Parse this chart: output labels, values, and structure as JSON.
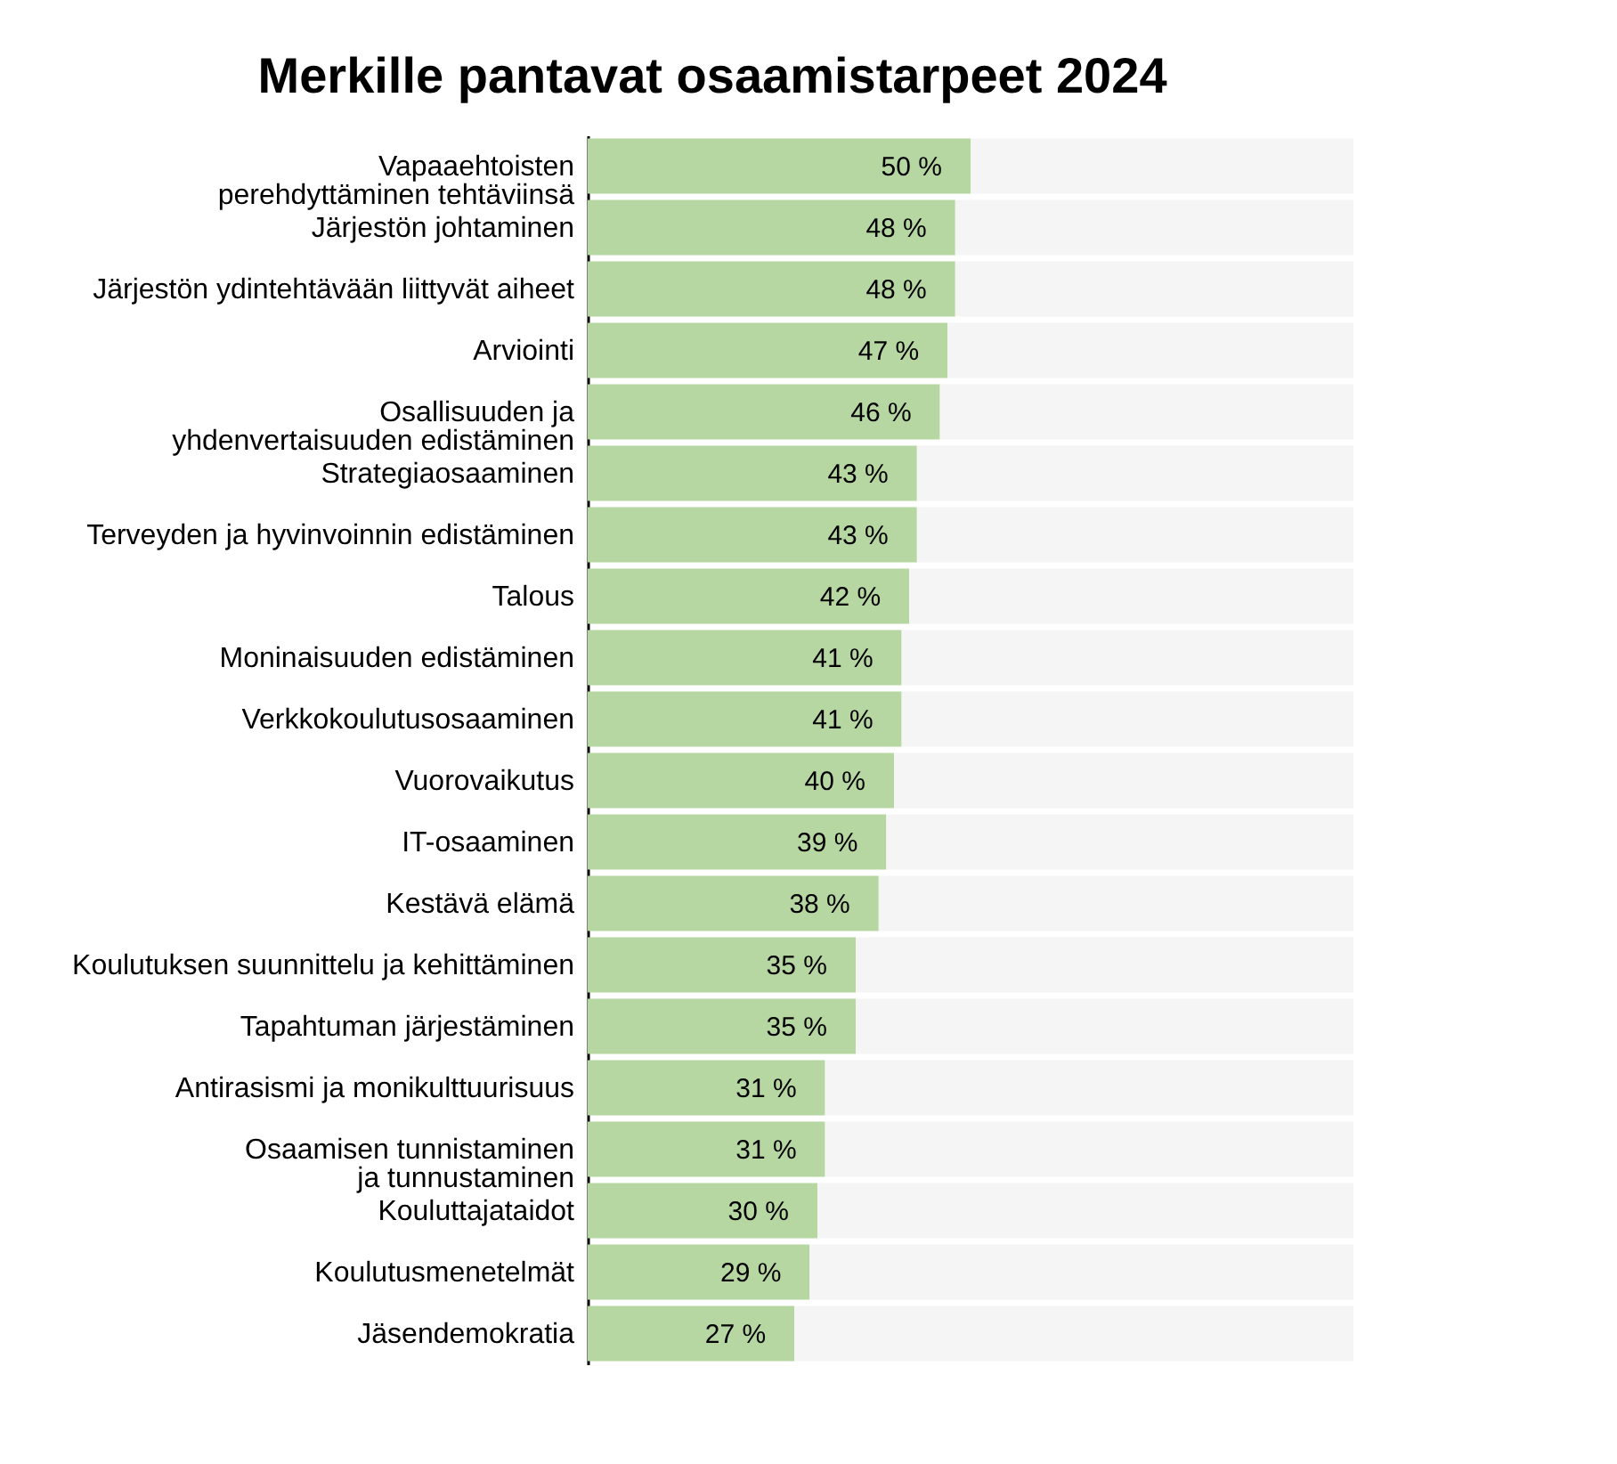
{
  "chart_data": {
    "type": "bar",
    "title": "Merkille pantavat osaamistarpeet 2024",
    "orientation": "horizontal",
    "stacked": true,
    "tick_labels": "y",
    "categories": [
      "Vapaaehtoisten\nperehdyttäminen tehtäviinsä",
      "Järjestön johtaminen",
      "Järjestön ydintehtävään liittyvät aiheet",
      "Arviointi",
      "Osallisuuden ja\nyhdenvertaisuuden edistäminen",
      "Strategiaosaaminen",
      "Terveyden ja hyvinvoinnin edistäminen",
      "Talous",
      "Moninaisuuden edistäminen",
      "Verkkokoulutusosaaminen",
      "Vuorovaikutus",
      "IT-osaaminen",
      "Kestävä elämä",
      "Koulutuksen suunnittelu ja kehittäminen",
      "Tapahtuman järjestäminen",
      "Antirasismi ja monikulttuurisuus",
      "Osaamisen tunnistaminen\nja tunnustaminen",
      "Kouluttajataidot",
      "Koulutusmenetelmät",
      "Jäsendemokratia"
    ],
    "series": [
      {
        "color": "#b6d7a1",
        "values": [
          50,
          48,
          48,
          47,
          46,
          43,
          43,
          42,
          41,
          41,
          40,
          39,
          38,
          35,
          35,
          31,
          31,
          30,
          29,
          27
        ],
        "value_labels": [
          "50 %",
          "48 %",
          "48 %",
          "47 %",
          "46 %",
          "43 %",
          "43 %",
          "42 %",
          "41 %",
          "41 %",
          "40 %",
          "39 %",
          "38 %",
          "35 %",
          "35 %",
          "31 %",
          "31 %",
          "30 %",
          "29 %",
          "27 %"
        ]
      },
      {
        "color": "#f5f5f5",
        "values": [
          50,
          52,
          52,
          53,
          54,
          57,
          57,
          58,
          59,
          59,
          60,
          61,
          62,
          65,
          65,
          69,
          69,
          70,
          71,
          73
        ]
      }
    ]
  }
}
